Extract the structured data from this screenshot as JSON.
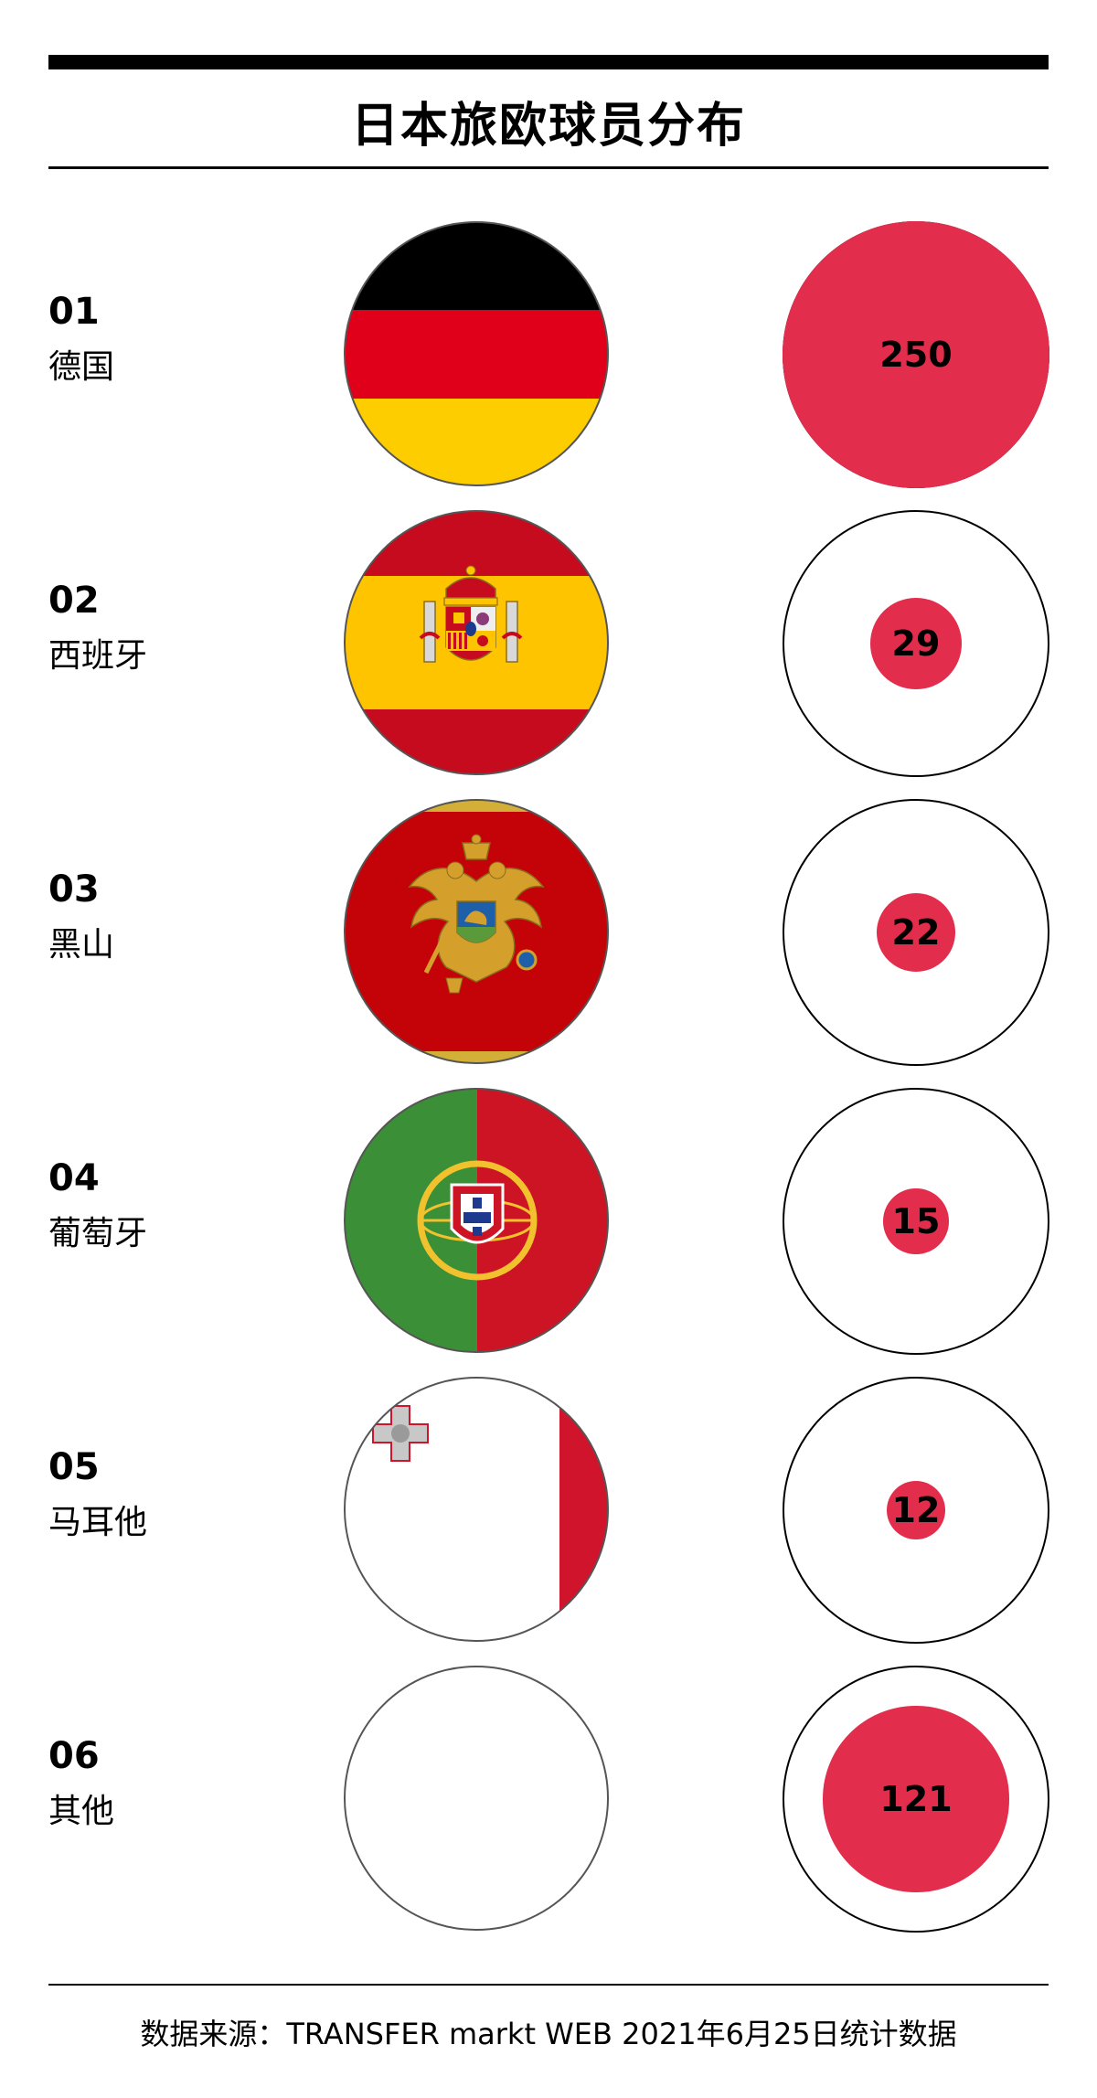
{
  "title": "日本旅欧球员分布",
  "source": "数据来源：TRANSFER markt WEB 2021年6月25日统计数据",
  "colors": {
    "accent": "#e32d4d",
    "ink": "#000000"
  },
  "chart_data": {
    "type": "bubble",
    "title": "日本旅欧球员分布",
    "categories": [
      "德国",
      "西班牙",
      "黑山",
      "葡萄牙",
      "马耳他",
      "其他"
    ],
    "series": [
      {
        "values": [
          250,
          29,
          22,
          15,
          12,
          121
        ]
      }
    ]
  },
  "rows": [
    {
      "rank": "01",
      "country": "德国",
      "value": "250",
      "flag": "germany-flag"
    },
    {
      "rank": "02",
      "country": "西班牙",
      "value": "29",
      "flag": "spain-flag"
    },
    {
      "rank": "03",
      "country": "黑山",
      "value": "22",
      "flag": "montenegro-flag"
    },
    {
      "rank": "04",
      "country": "葡萄牙",
      "value": "15",
      "flag": "portugal-flag"
    },
    {
      "rank": "05",
      "country": "马耳他",
      "value": "12",
      "flag": "malta-flag"
    },
    {
      "rank": "06",
      "country": "其他",
      "value": "121",
      "flag": "blank-flag"
    }
  ]
}
